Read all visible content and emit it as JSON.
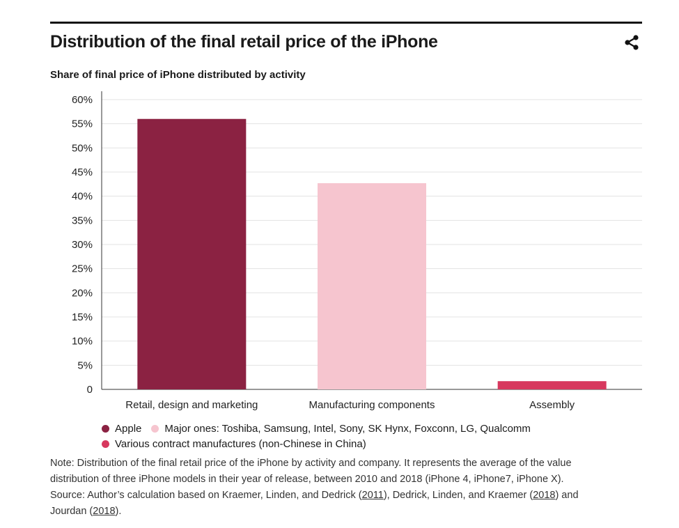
{
  "title": "Distribution of the final retail price of the iPhone",
  "share_icon": "share-icon",
  "colors": {
    "apple": "#8b2242",
    "components": "#f6c5cf",
    "assembly": "#d7385e",
    "grid": "#e3e3e3",
    "axis": "#333333"
  },
  "chart_data": {
    "type": "bar",
    "title": "Distribution of the final retail price of the iPhone",
    "subtitle": "Share of final price of iPhone distributed by activity",
    "categories": [
      "Retail, design and marketing",
      "Manufacturing components",
      "Assembly"
    ],
    "values": [
      56,
      42.7,
      1.7
    ],
    "bar_colors": [
      "#8b2242",
      "#f6c5cf",
      "#d7385e"
    ],
    "yticks": [
      "0",
      "5%",
      "10%",
      "15%",
      "20%",
      "25%",
      "30%",
      "35%",
      "40%",
      "45%",
      "50%",
      "55%",
      "60%"
    ],
    "ylim": [
      0,
      60
    ],
    "grid": true,
    "legend_position": "bottom-left",
    "legend": [
      {
        "label": "Apple",
        "color": "#8b2242"
      },
      {
        "label": "Major ones: Toshiba, Samsung, Intel, Sony, SK Hynx, Foxconn, LG, Qualcomm",
        "color": "#f6c5cf"
      },
      {
        "label": "Various contract manufactures (non-Chinese in China)",
        "color": "#d7385e"
      }
    ]
  },
  "note": {
    "line1": "Note: Distribution of the final retail price of the iPhone by activity and company. It represents the average of the value",
    "line2": "distribution of three iPhone models in their year of release, between 2010 and 2018 (iPhone 4, iPhone7, iPhone X).",
    "line3_a": "Source: Author’s calculation based on Kraemer, Linden, and Dedrick (",
    "link1": "2011",
    "line3_b": "), Dedrick, Linden, and Kraemer (",
    "link2": "2018",
    "line3_c": ") and",
    "line4_a": "Jourdan (",
    "link3": "2018",
    "line4_b": ")."
  }
}
